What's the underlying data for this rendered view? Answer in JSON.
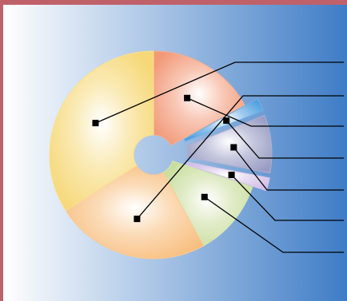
{
  "chart_data": {
    "type": "pie",
    "style": "exploded donut with leader lines",
    "labels_visible": false,
    "legend": "none",
    "slices": [
      {
        "value": 17,
        "color": "#f29a78",
        "exploded": false
      },
      {
        "value": 2,
        "color": "#4f9fe0",
        "exploded": true
      },
      {
        "value": 9,
        "color": "#9a9cc4",
        "exploded": true
      },
      {
        "value": 2,
        "color": "#d2bde6",
        "exploded": true
      },
      {
        "value": 12,
        "color": "#c9dd9c",
        "exploded": false
      },
      {
        "value": 24,
        "color": "#f8bd7c",
        "exploded": false
      },
      {
        "value": 34,
        "color": "#f6d878",
        "exploded": false
      }
    ],
    "background": {
      "start": "#ffffff",
      "end": "#3e7cc6"
    },
    "frame_color": "#c0616a"
  }
}
